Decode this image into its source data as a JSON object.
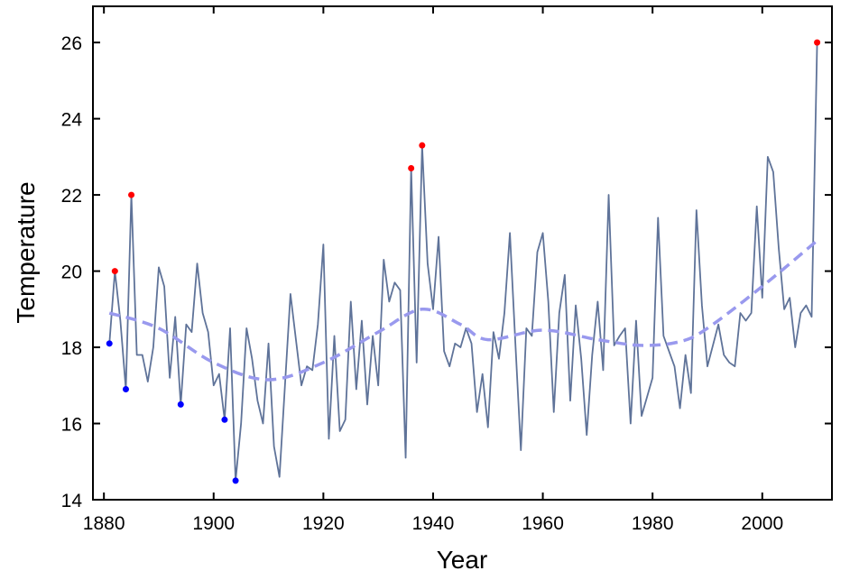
{
  "chart_data": {
    "type": "line",
    "title": "",
    "xlabel": "Year",
    "ylabel": "Temperature",
    "xlim": [
      1878,
      2012.7
    ],
    "ylim": [
      14,
      26.95
    ],
    "xticks": [
      1880,
      1900,
      1920,
      1940,
      1960,
      1980,
      2000
    ],
    "yticks": [
      14,
      16,
      18,
      20,
      22,
      24,
      26
    ],
    "grid": false,
    "start_year": 1881,
    "series": [
      {
        "name": "Temperature",
        "color": "#5f7399",
        "values": [
          18.1,
          20.0,
          18.7,
          16.9,
          22.0,
          17.8,
          17.8,
          17.1,
          18.0,
          20.1,
          19.6,
          17.2,
          18.8,
          16.5,
          18.6,
          18.4,
          20.2,
          18.9,
          18.4,
          17.0,
          17.3,
          16.1,
          18.5,
          14.5,
          16.0,
          18.5,
          17.7,
          16.6,
          16.0,
          18.1,
          15.4,
          14.6,
          17.0,
          19.4,
          18.2,
          17.0,
          17.5,
          17.4,
          18.6,
          20.7,
          15.6,
          18.3,
          15.8,
          16.1,
          19.2,
          16.9,
          18.7,
          16.5,
          18.3,
          17.0,
          20.3,
          19.2,
          19.7,
          19.5,
          15.1,
          22.7,
          17.6,
          23.3,
          20.2,
          19.0,
          20.9,
          17.9,
          17.5,
          18.1,
          18.0,
          18.5,
          18.1,
          16.3,
          17.3,
          15.9,
          18.4,
          17.7,
          18.9,
          21.0,
          18.1,
          15.3,
          18.5,
          18.3,
          20.5,
          21.0,
          19.2,
          16.3,
          18.9,
          19.9,
          16.6,
          19.1,
          17.7,
          15.7,
          17.8,
          19.2,
          17.4,
          22.0,
          18.05,
          18.3,
          18.5,
          16.0,
          18.7,
          16.2,
          16.7,
          17.2,
          21.4,
          18.3,
          17.9,
          17.5,
          16.4,
          17.8,
          16.8,
          21.6,
          19.1,
          17.5,
          18.05,
          18.6,
          17.8,
          17.6,
          17.5,
          18.9,
          18.7,
          18.9,
          21.7,
          19.3,
          23.0,
          22.6,
          20.6,
          19.0,
          19.3,
          18.0,
          18.9,
          19.1,
          18.8,
          26.0
        ]
      },
      {
        "name": "Trend",
        "color": "#9999ee",
        "style": "dashed",
        "x": [
          1881,
          1890,
          1900,
          1910,
          1920,
          1930,
          1938,
          1945,
          1950,
          1960,
          1970,
          1978,
          1985,
          1990,
          2000,
          2010
        ],
        "values": [
          18.9,
          18.5,
          17.6,
          17.15,
          17.6,
          18.4,
          19.0,
          18.6,
          18.2,
          18.45,
          18.2,
          18.05,
          18.15,
          18.5,
          19.6,
          20.8
        ]
      }
    ],
    "highlights": {
      "high": {
        "color": "#ff0000",
        "points": [
          [
            1882,
            20.0
          ],
          [
            1885,
            22.0
          ],
          [
            1936,
            22.7
          ],
          [
            1938,
            23.3
          ],
          [
            2010,
            26.0
          ]
        ]
      },
      "low": {
        "color": "#0000ff",
        "points": [
          [
            1881,
            18.1
          ],
          [
            1884,
            16.9
          ],
          [
            1894,
            16.5
          ],
          [
            1902,
            16.1
          ],
          [
            1904,
            14.5
          ]
        ]
      }
    }
  }
}
